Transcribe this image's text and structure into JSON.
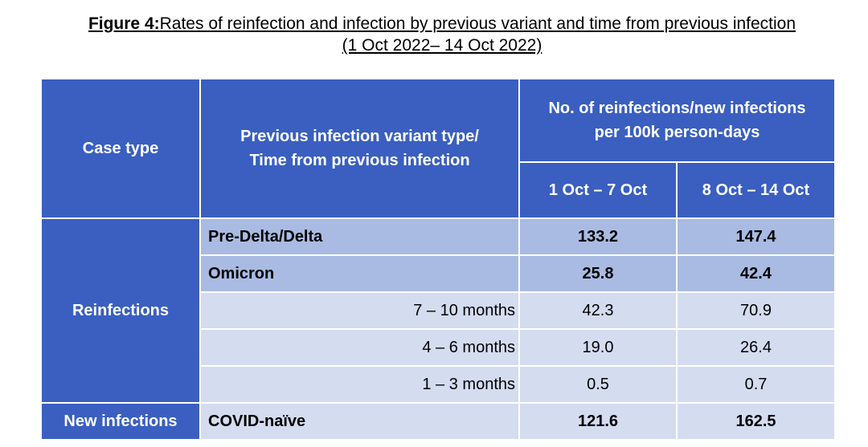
{
  "figure": {
    "label": "Figure 4:",
    "title": "Rates of reinfection and infection by previous variant and time from previous infection",
    "period": "(1 Oct 2022– 14 Oct 2022)"
  },
  "table": {
    "headers": {
      "case_type": "Case type",
      "variant_line1": "Previous infection variant type/",
      "variant_line2": "Time from previous infection",
      "rate_line1": "No. of reinfections/new infections",
      "rate_line2": "per 100k person-days",
      "week1": "1 Oct – 7 Oct",
      "week2": "8 Oct – 14 Oct"
    },
    "groups": {
      "reinfections": "Reinfections",
      "new_infections": "New infections"
    },
    "rows": [
      {
        "label": "Pre-Delta/Delta",
        "week1": "133.2",
        "week2": "147.4"
      },
      {
        "label": "Omicron",
        "week1": "25.8",
        "week2": "42.4"
      },
      {
        "label": "7 – 10 months",
        "week1": "42.3",
        "week2": "70.9"
      },
      {
        "label": "4 – 6 months",
        "week1": "19.0",
        "week2": "26.4"
      },
      {
        "label": "1 – 3 months",
        "week1": "0.5",
        "week2": "0.7"
      },
      {
        "label": "COVID-naïve",
        "week1": "121.6",
        "week2": "162.5"
      }
    ]
  }
}
